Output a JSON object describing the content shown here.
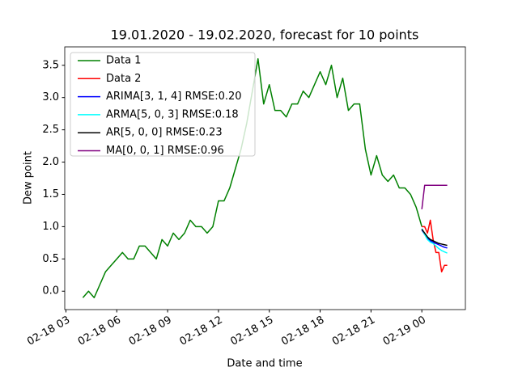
{
  "chart_data": {
    "type": "line",
    "title": "19.01.2020 - 19.02.2020, forecast for 10 points",
    "x_label": "Date and time",
    "y_label": "Dew point",
    "xlim": [
      2.93,
      26.57
    ],
    "ylim": [
      -0.285,
      3.785
    ],
    "xticks": [
      {
        "value": 3,
        "label": "02-18 03"
      },
      {
        "value": 6,
        "label": "02-18 06"
      },
      {
        "value": 9,
        "label": "02-18 09"
      },
      {
        "value": 12,
        "label": "02-18 12"
      },
      {
        "value": 15,
        "label": "02-18 15"
      },
      {
        "value": 18,
        "label": "02-18 18"
      },
      {
        "value": 21,
        "label": "02-18 21"
      },
      {
        "value": 24,
        "label": "02-19 00"
      }
    ],
    "yticks": [
      {
        "value": 0,
        "label": "0.0"
      },
      0.5,
      {
        "value": 1,
        "label": "1.0"
      },
      1.5,
      {
        "value": 2,
        "label": "2.0"
      },
      2.5,
      {
        "value": 3,
        "label": "3.0"
      },
      3.5
    ],
    "grid": false,
    "legend": "upper left",
    "series": [
      {
        "name": "Data 1",
        "color": "#008000",
        "x": [
          4,
          4.333,
          4.667,
          5,
          5.333,
          5.667,
          6,
          6.333,
          6.667,
          7,
          7.333,
          7.667,
          8,
          8.333,
          8.667,
          9,
          9.333,
          9.667,
          10,
          10.333,
          10.667,
          11,
          11.333,
          11.667,
          12,
          12.333,
          12.667,
          13,
          13.333,
          13.667,
          14,
          14.333,
          14.667,
          15,
          15.333,
          15.667,
          16,
          16.333,
          16.667,
          17,
          17.333,
          17.667,
          18,
          18.333,
          18.667,
          19,
          19.333,
          19.667,
          20,
          20.333,
          20.667,
          21,
          21.333,
          21.667,
          22,
          22.333,
          22.667,
          23,
          23.333,
          23.667,
          24
        ],
        "values": [
          -0.1,
          0.0,
          -0.1,
          0.1,
          0.3,
          0.4,
          0.5,
          0.6,
          0.5,
          0.5,
          0.7,
          0.7,
          0.6,
          0.5,
          0.8,
          0.7,
          0.9,
          0.8,
          0.9,
          1.1,
          1.0,
          1.0,
          0.9,
          1.0,
          1.4,
          1.4,
          1.6,
          1.9,
          2.2,
          2.6,
          3.1,
          3.6,
          2.9,
          3.2,
          2.8,
          2.8,
          2.7,
          2.9,
          2.9,
          3.1,
          3.0,
          3.2,
          3.4,
          3.2,
          3.5,
          3.0,
          3.3,
          2.8,
          2.9,
          2.9,
          2.2,
          1.8,
          2.1,
          1.8,
          1.7,
          1.8,
          1.6,
          1.6,
          1.5,
          1.3,
          1.0
        ]
      },
      {
        "name": "Data 2",
        "color": "#ff0000",
        "x": [
          24,
          24.167,
          24.333,
          24.5,
          24.667,
          24.833,
          25,
          25.167,
          25.333,
          25.5
        ],
        "values": [
          1.0,
          1.0,
          0.9,
          1.1,
          0.8,
          0.6,
          0.6,
          0.3,
          0.4,
          0.4
        ]
      },
      {
        "name": "ARIMA[3, 1, 4] RMSE:0.20",
        "color": "#0000ff",
        "x": [
          24,
          24.167,
          24.333,
          24.5,
          24.667,
          24.833,
          25,
          25.167,
          25.333,
          25.5
        ],
        "values": [
          0.95,
          0.88,
          0.82,
          0.78,
          0.76,
          0.74,
          0.72,
          0.7,
          0.68,
          0.67
        ]
      },
      {
        "name": "ARMA[5, 0, 3] RMSE:0.18",
        "color": "#00ffff",
        "x": [
          24,
          24.167,
          24.333,
          24.5,
          24.667,
          24.833,
          25,
          25.167,
          25.333,
          25.5
        ],
        "values": [
          0.97,
          0.88,
          0.8,
          0.76,
          0.74,
          0.7,
          0.66,
          0.63,
          0.61,
          0.59
        ]
      },
      {
        "name": "AR[5, 0, 0] RMSE:0.23",
        "color": "#000000",
        "x": [
          24,
          24.167,
          24.333,
          24.5,
          24.667,
          24.833,
          25,
          25.167,
          25.333,
          25.5
        ],
        "values": [
          0.96,
          0.9,
          0.84,
          0.8,
          0.78,
          0.76,
          0.74,
          0.73,
          0.72,
          0.71
        ]
      },
      {
        "name": "MA[0, 0, 1] RMSE:0.96",
        "color": "#800080",
        "x": [
          24,
          24.167,
          24.333,
          24.5,
          24.667,
          24.833,
          25,
          25.167,
          25.333,
          25.5
        ],
        "values": [
          1.27,
          1.64,
          1.64,
          1.64,
          1.64,
          1.64,
          1.64,
          1.64,
          1.64,
          1.64
        ]
      }
    ]
  }
}
